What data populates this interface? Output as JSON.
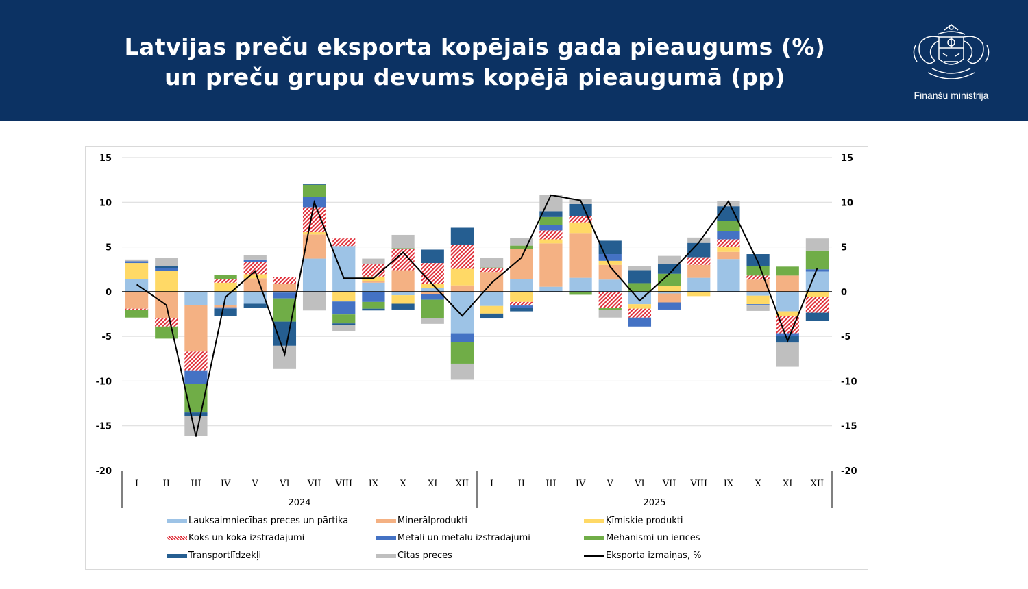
{
  "header": {
    "title_line1": "Latvijas preču eksporta kopējais gada pieaugums (%)",
    "title_line2": "un preču grupu devums kopējā pieaugumā (pp)",
    "logo_text": "Finanšu ministrija"
  },
  "chart_data": {
    "type": "bar",
    "stacked": true,
    "title": "Latvijas preču eksporta kopējais gada pieaugums (%) un preču grupu devums kopējā pieaugumā (pp)",
    "categories": [
      "I",
      "II",
      "III",
      "IV",
      "V",
      "VI",
      "VII",
      "VIII",
      "IX",
      "X",
      "XI",
      "XII",
      "I",
      "II",
      "III",
      "IV",
      "V",
      "VI",
      "VII",
      "VIII",
      "IX",
      "X",
      "XI",
      "XII"
    ],
    "groups": [
      {
        "label": "2024",
        "count": 12
      },
      {
        "label": "2025",
        "count": 12
      }
    ],
    "ylim": [
      -20,
      15
    ],
    "yticks": [
      15,
      10,
      5,
      0,
      -5,
      -10,
      -15,
      -20
    ],
    "secondary_yaxis": true,
    "grid": true,
    "legend_position": "bottom",
    "series": [
      {
        "name": "Lauksaimniecības preces un pārtika",
        "color": "#9dc3e6",
        "pattern": "solid",
        "values": [
          1.4,
          0,
          -1.5,
          -1.5,
          -1.35,
          -0.1,
          3.7,
          5.1,
          1.0,
          -0.4,
          0.45,
          -4.65,
          -1.6,
          1.4,
          0.55,
          1.55,
          1.35,
          -1.4,
          -0.2,
          1.55,
          3.65,
          -0.45,
          -2.2,
          2.25
        ]
      },
      {
        "name": "Minerālprodukti",
        "color": "#f4b183",
        "pattern": "solid",
        "values": [
          -1.9,
          -3.0,
          -5.2,
          -0.25,
          1.5,
          0.9,
          2.7,
          0,
          0.2,
          2.4,
          -0.25,
          0.7,
          2.2,
          3.4,
          4.85,
          5.0,
          1.65,
          0,
          -1.0,
          1.45,
          0.8,
          1.35,
          1.8,
          0
        ]
      },
      {
        "name": "Ķīmiskie produkti",
        "color": "#ffd966",
        "pattern": "solid",
        "values": [
          1.8,
          2.3,
          0,
          1.0,
          0.45,
          0,
          0.25,
          -1.1,
          0.5,
          -0.95,
          0.4,
          1.85,
          -0.85,
          -1.15,
          0.45,
          1.2,
          0.45,
          -0.5,
          0.65,
          -0.5,
          0.55,
          -0.95,
          -0.5,
          -0.6
        ]
      },
      {
        "name": "Koks un koka izstrādājumi",
        "color": "#e0303a",
        "pattern": "hatch",
        "values": [
          -0.1,
          -0.9,
          -2.1,
          0.4,
          1.4,
          0.7,
          2.8,
          0.85,
          1.35,
          2.35,
          2.35,
          2.7,
          0.4,
          -0.4,
          1.0,
          0.7,
          -1.85,
          -1.0,
          0,
          0.85,
          0.85,
          0.45,
          -1.95,
          -1.75
        ]
      },
      {
        "name": "Metāli un metālu izstrādājumi",
        "color": "#4472c4",
        "pattern": "solid",
        "values": [
          0.2,
          0.3,
          -1.5,
          -0.15,
          0.25,
          -0.65,
          1.15,
          -1.45,
          -1.15,
          0,
          -0.65,
          -1.0,
          0,
          -0.25,
          0.6,
          0,
          0.75,
          -1.0,
          -0.8,
          0,
          0.95,
          -0.15,
          -0.3,
          0.25
        ]
      },
      {
        "name": "Mehānismi un ierīces",
        "color": "#70ad47",
        "pattern": "solid",
        "values": [
          -0.9,
          -1.35,
          -3.2,
          0.5,
          0,
          -2.6,
          1.35,
          -1.0,
          -0.75,
          0.1,
          -2.05,
          -2.4,
          0.1,
          0.35,
          0.9,
          -0.35,
          -0.2,
          0.95,
          1.35,
          0,
          1.15,
          1.05,
          1.0,
          2.1
        ]
      },
      {
        "name": "Transportlīdzekļi",
        "color": "#255e91",
        "pattern": "solid",
        "values": [
          0,
          0.3,
          -0.4,
          -0.85,
          -0.45,
          -2.7,
          0.1,
          -0.15,
          -0.2,
          -0.65,
          1.5,
          1.9,
          -0.55,
          -0.4,
          0.65,
          1.35,
          1.5,
          1.45,
          1.1,
          1.6,
          1.6,
          1.35,
          -0.75,
          -0.95
        ]
      },
      {
        "name": "Citas preces",
        "color": "#bfbfbf",
        "pattern": "solid",
        "values": [
          0.2,
          0.85,
          -2.2,
          0,
          0.45,
          -2.6,
          -2.1,
          -0.7,
          0.65,
          1.5,
          -0.65,
          -1.8,
          1.1,
          0.85,
          1.8,
          0.6,
          -0.85,
          0.45,
          0.9,
          0.6,
          0.6,
          -0.6,
          -2.7,
          1.35
        ]
      },
      {
        "name": "Eksporta izmaiņas, %",
        "color": "#000000",
        "type": "line",
        "values": [
          0.8,
          -1.5,
          -16.2,
          -0.6,
          2.3,
          -7.0,
          10.0,
          1.5,
          1.5,
          4.4,
          0.8,
          -2.7,
          1.0,
          3.8,
          10.8,
          10.2,
          2.8,
          -1.0,
          2.0,
          5.5,
          10.1,
          3.3,
          -5.5,
          2.6
        ]
      }
    ]
  }
}
